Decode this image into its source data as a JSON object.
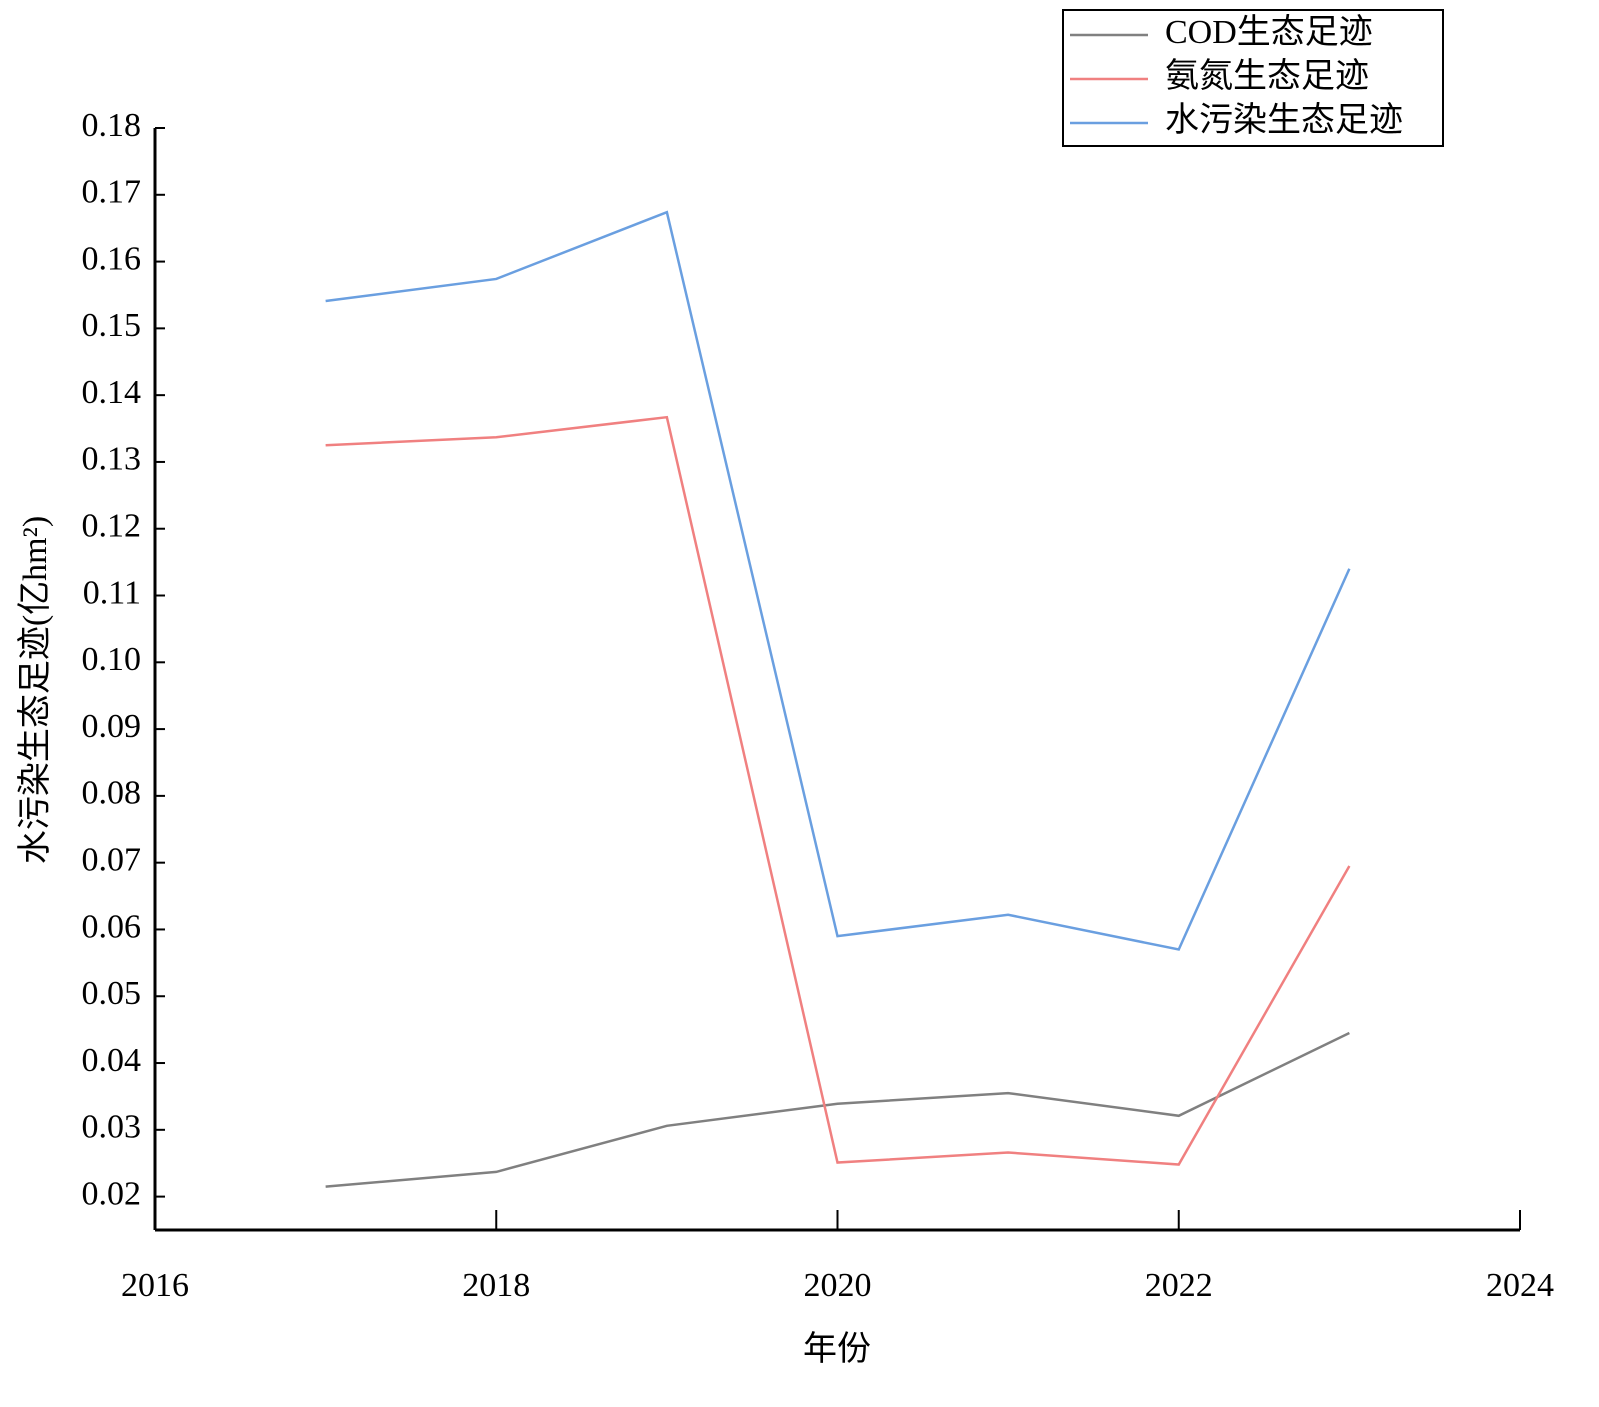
{
  "chart_data": {
    "type": "line",
    "x": [
      2017,
      2018,
      2019,
      2020,
      2021,
      2022,
      2023
    ],
    "series": [
      {
        "name": "COD生态足迹",
        "color": "#808080",
        "values": [
          0.0215,
          0.0237,
          0.0306,
          0.0339,
          0.0355,
          0.0321,
          0.0445
        ]
      },
      {
        "name": "氨氮生态足迹",
        "color": "#f08080",
        "values": [
          0.1325,
          0.1337,
          0.1367,
          0.0251,
          0.0266,
          0.0248,
          0.0695
        ]
      },
      {
        "name": "水污染生态足迹",
        "color": "#6a9fe0",
        "values": [
          0.1541,
          0.1574,
          0.1674,
          0.059,
          0.0622,
          0.057,
          0.114
        ]
      }
    ],
    "xlabel": "年份",
    "ylabel": "水污染生态足迹(亿hm²)",
    "xlim": [
      2016,
      2024
    ],
    "xticks": [
      2016,
      2018,
      2020,
      2022,
      2024
    ],
    "ylim": [
      0.015,
      0.18
    ],
    "yticks": [
      0.02,
      0.03,
      0.04,
      0.05,
      0.06,
      0.07,
      0.08,
      0.09,
      {
        "value": 0.1,
        "label": "0.10"
      },
      0.11,
      0.12,
      0.13,
      0.14,
      0.15,
      0.16,
      0.17,
      0.18
    ],
    "legend": "upper-right"
  }
}
